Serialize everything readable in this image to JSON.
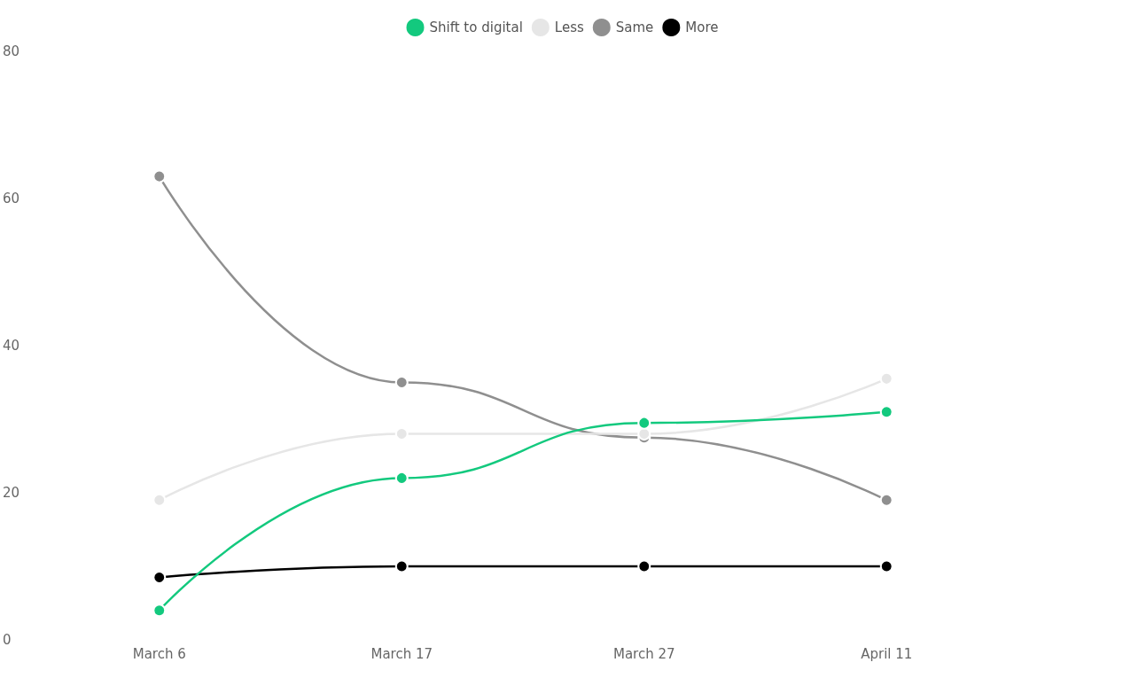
{
  "chart_data": {
    "type": "line",
    "categories": [
      "March 6",
      "March 17",
      "March 27",
      "April 11"
    ],
    "series": [
      {
        "name": "Shift to digital",
        "color": "#13c97e",
        "values": [
          4,
          22,
          29.5,
          31
        ]
      },
      {
        "name": "Less",
        "color": "#e6e6e6",
        "values": [
          19,
          28,
          28,
          35.5
        ]
      },
      {
        "name": "Same",
        "color": "#8f8f8f",
        "values": [
          63,
          35,
          27.5,
          19
        ]
      },
      {
        "name": "More",
        "color": "#000000",
        "values": [
          8.5,
          10,
          10,
          10
        ]
      }
    ],
    "ylim": [
      0,
      80
    ],
    "yticks": [
      0,
      20,
      40,
      60,
      80
    ],
    "grid": false,
    "legend": "top",
    "marker": "circle",
    "line_style": "solid"
  }
}
